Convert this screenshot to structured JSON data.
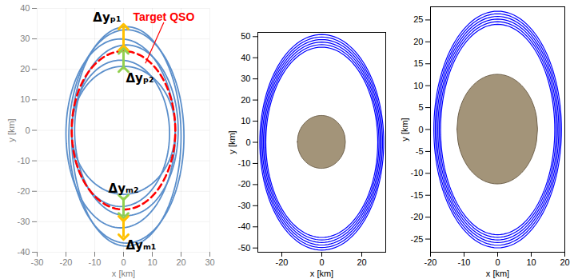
{
  "chart_data": [
    {
      "type": "line",
      "xlabel": "x [km]",
      "ylabel": "y [km]",
      "xlim": [
        -30,
        30
      ],
      "xticks": [
        -30,
        -20,
        -10,
        0,
        10,
        20,
        30
      ],
      "ylim": [
        -40,
        40
      ],
      "yticks": [
        -40,
        -30,
        -20,
        -10,
        0,
        10,
        20,
        30,
        40
      ],
      "grid": true,
      "color": "#5b8fcb",
      "ellipses": [
        {
          "cx": 1,
          "cy": -2,
          "a": 20,
          "b": 35
        },
        {
          "cx": -1,
          "cy": -1,
          "a": 19,
          "b": 31
        },
        {
          "cx": 1,
          "cy": 0,
          "a": 18,
          "b": 28
        },
        {
          "cx": -1,
          "cy": -1,
          "a": 17,
          "b": 24
        },
        {
          "cx": 0,
          "cy": 0,
          "a": 18,
          "b": 21
        },
        {
          "cx": 1,
          "cy": -2,
          "a": 19,
          "b": 36
        }
      ],
      "target": {
        "name": "Target QSO",
        "color": "#ff0000",
        "line_style": "dashed",
        "cx": 0,
        "cy": 0,
        "a": 18,
        "b": 26
      },
      "annotations": [
        {
          "text": "Target QSO",
          "x": 14,
          "y": 37,
          "color": "#ff0000"
        }
      ],
      "arrows": [
        {
          "label": "Δyₚ₁",
          "x": 0,
          "y1": 27,
          "y2": 34,
          "color": "#ffc000"
        },
        {
          "label": "Δyₚ₂",
          "x": 0,
          "y1": 20,
          "y2": 26,
          "color": "#92d050"
        },
        {
          "label": "Δyₘ₂",
          "x": 0,
          "y1": -22,
          "y2": -28,
          "color": "#92d050"
        },
        {
          "label": "Δyₘ₁",
          "x": 0,
          "y1": -29,
          "y2": -35,
          "color": "#ffc000"
        }
      ]
    },
    {
      "type": "line",
      "xlabel": "x [km]",
      "ylabel": "y [km]",
      "xlim": [
        -32,
        32
      ],
      "xticks": [
        -20,
        0,
        20
      ],
      "ylim": [
        -52,
        52
      ],
      "yticks": [
        -50,
        -40,
        -30,
        -20,
        -10,
        0,
        10,
        20,
        30,
        40,
        50
      ],
      "grid": false,
      "color": "#0000ff",
      "ellipses": [
        {
          "cx": 0,
          "cy": 0,
          "a": 28,
          "b": 45
        },
        {
          "cx": 0,
          "cy": 0,
          "a": 28.6,
          "b": 46.2
        },
        {
          "cx": 0,
          "cy": 0,
          "a": 29.2,
          "b": 47.4
        },
        {
          "cx": 0,
          "cy": 0,
          "a": 29.8,
          "b": 48.6
        },
        {
          "cx": 0,
          "cy": 0,
          "a": 30.4,
          "b": 49.8
        },
        {
          "cx": 0,
          "cy": 0,
          "a": 31,
          "b": 51
        }
      ],
      "body": {
        "a": 12,
        "b": 12.5,
        "color": "#a39479"
      }
    },
    {
      "type": "line",
      "xlabel": "x [km]",
      "ylabel": "y [km]",
      "xlim": [
        -20,
        20
      ],
      "xticks": [
        -20,
        -10,
        0,
        10,
        20
      ],
      "ylim": [
        -28,
        28
      ],
      "yticks": [
        -25,
        -20,
        -15,
        -10,
        -5,
        0,
        5,
        10,
        15,
        20,
        25
      ],
      "grid": false,
      "color": "#0000ff",
      "ellipses": [
        {
          "cx": 0,
          "cy": 0,
          "a": 17,
          "b": 24
        },
        {
          "cx": 0,
          "cy": 0,
          "a": 17.4,
          "b": 24.6
        },
        {
          "cx": 0,
          "cy": 0,
          "a": 17.8,
          "b": 25.2
        },
        {
          "cx": 0,
          "cy": 0,
          "a": 18.2,
          "b": 25.8
        },
        {
          "cx": 0,
          "cy": 0,
          "a": 18.6,
          "b": 26.4
        },
        {
          "cx": 0,
          "cy": 0,
          "a": 19,
          "b": 27
        }
      ],
      "body": {
        "a": 12,
        "b": 12.5,
        "color": "#a39479"
      }
    }
  ]
}
